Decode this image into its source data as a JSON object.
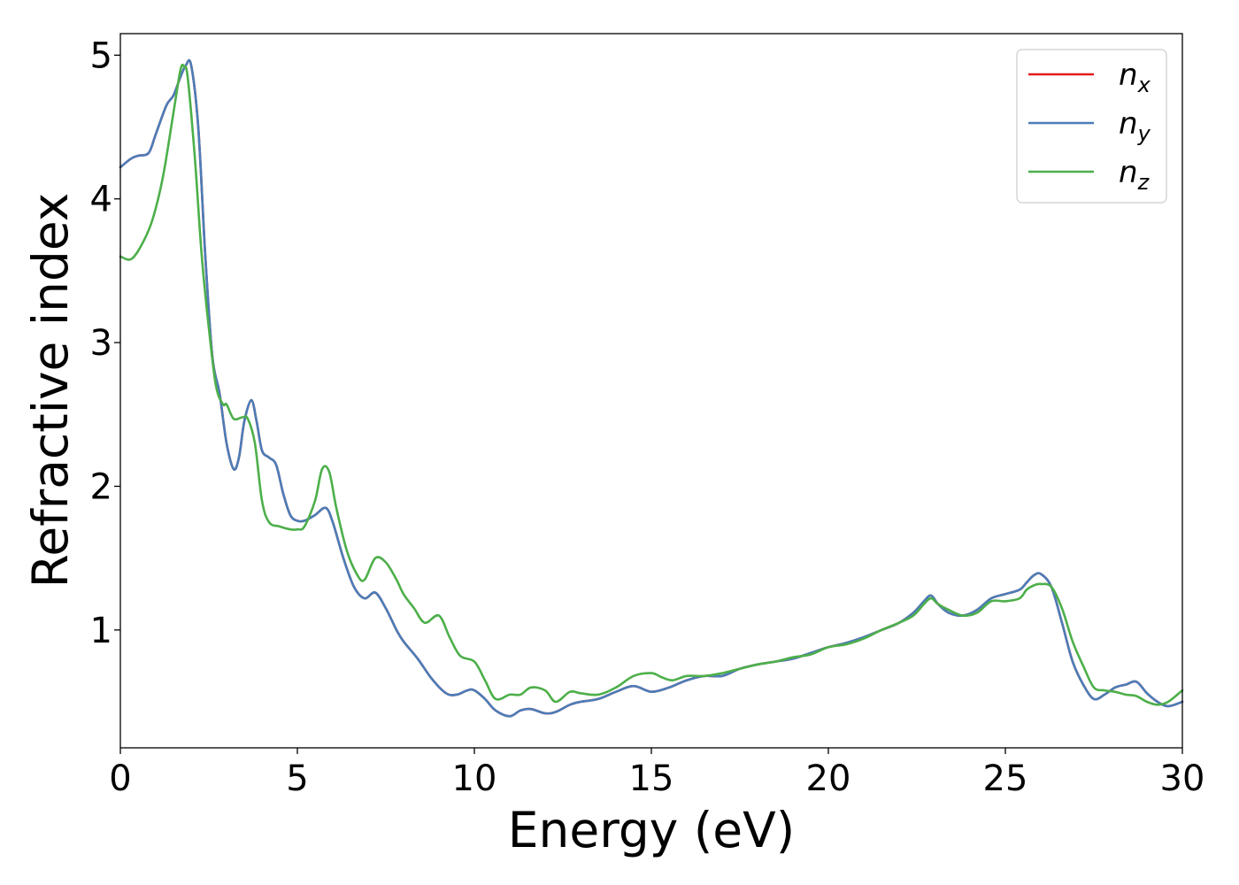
{
  "chart_data": {
    "type": "line",
    "title": "",
    "xlabel": "Energy (eV)",
    "ylabel": "Refractive index",
    "xlim": [
      0,
      30
    ],
    "ylim": [
      0.18,
      5.15
    ],
    "xticks": [
      "0",
      "5",
      "10",
      "15",
      "20",
      "25",
      "30"
    ],
    "yticks": [
      "1",
      "2",
      "3",
      "4",
      "5"
    ],
    "grid": false,
    "legend_position": "top-right",
    "series": [
      {
        "name": "n",
        "sub": "x",
        "color": "#e41a1c",
        "x": [
          0,
          0.3,
          0.5,
          0.8,
          1.0,
          1.3,
          1.5,
          1.7,
          1.85,
          2.0,
          2.2,
          2.4,
          2.6,
          2.8,
          3.0,
          3.2,
          3.35,
          3.5,
          3.7,
          3.85,
          4.0,
          4.2,
          4.4,
          4.6,
          4.8,
          5.0,
          5.2,
          5.5,
          5.8,
          6.0,
          6.3,
          6.6,
          6.9,
          7.2,
          7.5,
          7.8,
          8.0,
          8.4,
          8.8,
          9.2,
          9.5,
          9.8,
          10.0,
          10.3,
          10.6,
          11.0,
          11.3,
          11.6,
          12.0,
          12.3,
          12.7,
          13.0,
          13.5,
          14.0,
          14.5,
          15.0,
          15.5,
          16.0,
          16.5,
          17.0,
          17.5,
          18.0,
          18.5,
          19.0,
          19.5,
          20.0,
          20.5,
          21.0,
          21.5,
          22.0,
          22.4,
          22.7,
          22.9,
          23.1,
          23.4,
          23.8,
          24.2,
          24.6,
          25.0,
          25.4,
          25.6,
          25.8,
          26.0,
          26.3,
          26.6,
          26.9,
          27.2,
          27.5,
          27.8,
          28.1,
          28.4,
          28.7,
          29.0,
          29.3,
          29.6,
          30.0
        ],
        "y": [
          4.22,
          4.28,
          4.3,
          4.32,
          4.45,
          4.65,
          4.72,
          4.85,
          4.93,
          4.93,
          4.5,
          3.6,
          2.9,
          2.65,
          2.3,
          2.12,
          2.2,
          2.45,
          2.6,
          2.45,
          2.25,
          2.2,
          2.15,
          1.95,
          1.8,
          1.76,
          1.76,
          1.8,
          1.85,
          1.75,
          1.5,
          1.3,
          1.22,
          1.26,
          1.15,
          1.0,
          0.92,
          0.8,
          0.66,
          0.56,
          0.55,
          0.58,
          0.58,
          0.52,
          0.44,
          0.4,
          0.44,
          0.45,
          0.42,
          0.43,
          0.48,
          0.5,
          0.52,
          0.57,
          0.61,
          0.57,
          0.6,
          0.65,
          0.68,
          0.68,
          0.73,
          0.76,
          0.78,
          0.8,
          0.84,
          0.88,
          0.91,
          0.95,
          1.0,
          1.05,
          1.12,
          1.2,
          1.24,
          1.18,
          1.12,
          1.1,
          1.14,
          1.22,
          1.25,
          1.28,
          1.33,
          1.38,
          1.39,
          1.3,
          1.05,
          0.78,
          0.62,
          0.52,
          0.55,
          0.6,
          0.62,
          0.64,
          0.56,
          0.5,
          0.47,
          0.5
        ]
      },
      {
        "name": "n",
        "sub": "y",
        "color": "#4a7db8",
        "x": [
          0,
          0.3,
          0.5,
          0.8,
          1.0,
          1.3,
          1.5,
          1.7,
          1.85,
          2.0,
          2.2,
          2.4,
          2.6,
          2.8,
          3.0,
          3.2,
          3.35,
          3.5,
          3.7,
          3.85,
          4.0,
          4.2,
          4.4,
          4.6,
          4.8,
          5.0,
          5.2,
          5.5,
          5.8,
          6.0,
          6.3,
          6.6,
          6.9,
          7.2,
          7.5,
          7.8,
          8.0,
          8.4,
          8.8,
          9.2,
          9.5,
          9.8,
          10.0,
          10.3,
          10.6,
          11.0,
          11.3,
          11.6,
          12.0,
          12.3,
          12.7,
          13.0,
          13.5,
          14.0,
          14.5,
          15.0,
          15.5,
          16.0,
          16.5,
          17.0,
          17.5,
          18.0,
          18.5,
          19.0,
          19.5,
          20.0,
          20.5,
          21.0,
          21.5,
          22.0,
          22.4,
          22.7,
          22.9,
          23.1,
          23.4,
          23.8,
          24.2,
          24.6,
          25.0,
          25.4,
          25.6,
          25.8,
          26.0,
          26.3,
          26.6,
          26.9,
          27.2,
          27.5,
          27.8,
          28.1,
          28.4,
          28.7,
          29.0,
          29.3,
          29.6,
          30.0
        ],
        "y": [
          4.22,
          4.28,
          4.3,
          4.32,
          4.45,
          4.65,
          4.72,
          4.85,
          4.93,
          4.93,
          4.5,
          3.6,
          2.9,
          2.65,
          2.3,
          2.12,
          2.2,
          2.45,
          2.6,
          2.45,
          2.25,
          2.2,
          2.15,
          1.95,
          1.8,
          1.76,
          1.76,
          1.8,
          1.85,
          1.75,
          1.5,
          1.3,
          1.22,
          1.26,
          1.15,
          1.0,
          0.92,
          0.8,
          0.66,
          0.56,
          0.55,
          0.58,
          0.58,
          0.52,
          0.44,
          0.4,
          0.44,
          0.45,
          0.42,
          0.43,
          0.48,
          0.5,
          0.52,
          0.57,
          0.61,
          0.57,
          0.6,
          0.65,
          0.68,
          0.68,
          0.73,
          0.76,
          0.78,
          0.8,
          0.84,
          0.88,
          0.91,
          0.95,
          1.0,
          1.05,
          1.12,
          1.2,
          1.24,
          1.18,
          1.12,
          1.1,
          1.14,
          1.22,
          1.25,
          1.28,
          1.33,
          1.38,
          1.39,
          1.3,
          1.05,
          0.78,
          0.62,
          0.52,
          0.55,
          0.6,
          0.62,
          0.64,
          0.56,
          0.5,
          0.47,
          0.5
        ]
      },
      {
        "name": "n",
        "sub": "z",
        "color": "#4daf4a",
        "x": [
          0,
          0.3,
          0.6,
          0.9,
          1.2,
          1.5,
          1.7,
          1.8,
          1.9,
          2.1,
          2.3,
          2.5,
          2.7,
          2.9,
          3.0,
          3.2,
          3.45,
          3.6,
          3.8,
          4.0,
          4.2,
          4.5,
          4.8,
          5.0,
          5.2,
          5.5,
          5.7,
          5.9,
          6.1,
          6.4,
          6.7,
          6.9,
          7.2,
          7.5,
          7.8,
          8.0,
          8.3,
          8.6,
          9.0,
          9.3,
          9.6,
          10.0,
          10.3,
          10.6,
          11.0,
          11.3,
          11.6,
          12.0,
          12.3,
          12.7,
          13.0,
          13.5,
          14.0,
          14.5,
          15.0,
          15.3,
          15.6,
          16.0,
          16.5,
          17.0,
          17.5,
          18.0,
          18.5,
          19.0,
          19.5,
          20.0,
          20.5,
          21.0,
          21.5,
          22.0,
          22.4,
          22.7,
          22.9,
          23.1,
          23.4,
          23.8,
          24.2,
          24.6,
          25.0,
          25.4,
          25.6,
          25.8,
          26.0,
          26.3,
          26.6,
          26.9,
          27.2,
          27.5,
          27.8,
          28.1,
          28.4,
          28.7,
          29.0,
          29.3,
          29.6,
          30.0
        ],
        "y": [
          3.6,
          3.58,
          3.68,
          3.85,
          4.15,
          4.6,
          4.9,
          4.92,
          4.85,
          4.3,
          3.6,
          3.1,
          2.7,
          2.57,
          2.57,
          2.47,
          2.48,
          2.47,
          2.3,
          1.9,
          1.75,
          1.72,
          1.7,
          1.7,
          1.72,
          1.9,
          2.12,
          2.1,
          1.85,
          1.55,
          1.38,
          1.35,
          1.5,
          1.47,
          1.35,
          1.25,
          1.15,
          1.05,
          1.1,
          0.95,
          0.82,
          0.78,
          0.65,
          0.52,
          0.55,
          0.55,
          0.6,
          0.58,
          0.5,
          0.57,
          0.56,
          0.55,
          0.6,
          0.68,
          0.7,
          0.67,
          0.65,
          0.68,
          0.68,
          0.7,
          0.73,
          0.76,
          0.78,
          0.81,
          0.83,
          0.88,
          0.9,
          0.94,
          1.0,
          1.05,
          1.1,
          1.18,
          1.22,
          1.18,
          1.14,
          1.1,
          1.12,
          1.2,
          1.2,
          1.22,
          1.28,
          1.31,
          1.32,
          1.3,
          1.15,
          0.92,
          0.75,
          0.6,
          0.58,
          0.57,
          0.55,
          0.54,
          0.5,
          0.48,
          0.5,
          0.58
        ]
      }
    ]
  }
}
